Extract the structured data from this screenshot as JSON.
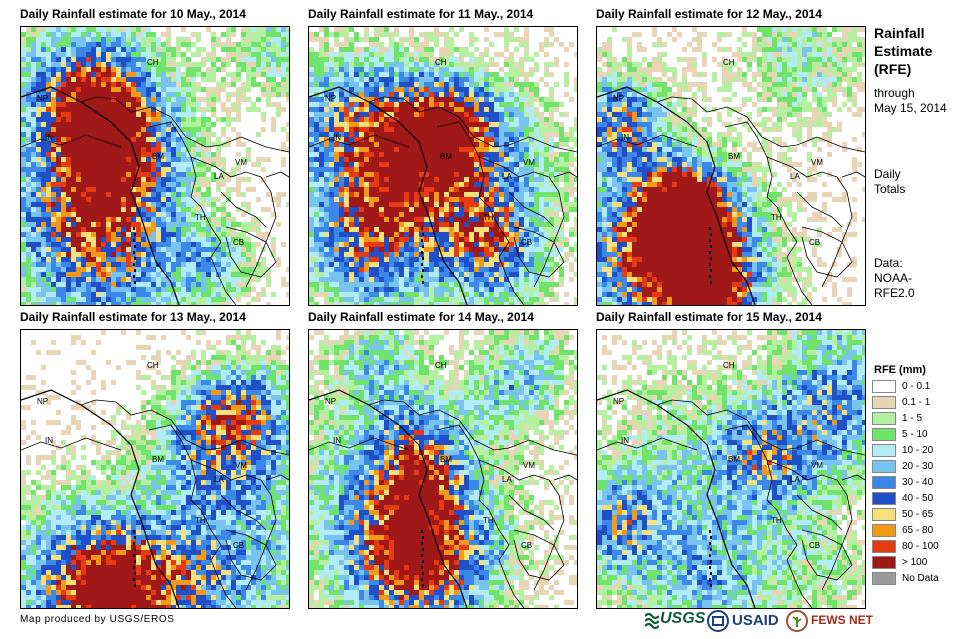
{
  "panels": [
    {
      "title": "Daily Rainfall estimate for 10 May., 2014",
      "seed": 11,
      "bias": [
        0.25,
        0.65
      ],
      "intensity": 0.55
    },
    {
      "title": "Daily Rainfall estimate for 11 May., 2014",
      "seed": 23,
      "bias": [
        0.55,
        0.75
      ],
      "intensity": 0.6
    },
    {
      "title": "Daily Rainfall estimate for 12 May., 2014",
      "seed": 37,
      "bias": [
        0.35,
        0.85
      ],
      "intensity": 0.85
    },
    {
      "title": "Daily Rainfall estimate for 13 May., 2014",
      "seed": 41,
      "bias": [
        0.25,
        0.85
      ],
      "intensity": 0.8
    },
    {
      "title": "Daily Rainfall estimate for 14 May., 2014",
      "seed": 53,
      "bias": [
        0.45,
        0.85
      ],
      "intensity": 0.75
    },
    {
      "title": "Daily Rainfall estimate for 15 May., 2014",
      "seed": 67,
      "bias": [
        0.4,
        0.9
      ],
      "intensity": 0.75
    }
  ],
  "country_labels": [
    "CH",
    "NP",
    "IN",
    "BM",
    "LA",
    "VM",
    "TH",
    "CB"
  ],
  "sidebar": {
    "title_line1": "Rainfall",
    "title_line2": "Estimate",
    "title_line3": "(RFE)",
    "through_line1": "through",
    "through_line2": "May 15, 2014",
    "totals_line1": "Daily",
    "totals_line2": "Totals",
    "data_line1": "Data:",
    "data_line2": "NOAA-",
    "data_line3": "RFE2.0"
  },
  "legend": {
    "title": "RFE (mm)",
    "items": [
      {
        "label": "0 - 0.1",
        "color": "#ffffff"
      },
      {
        "label": "0.1 - 1",
        "color": "#e8d5b5"
      },
      {
        "label": "1 - 5",
        "color": "#b4f0a0"
      },
      {
        "label": "5 - 10",
        "color": "#6fe36a"
      },
      {
        "label": "10 - 20",
        "color": "#b2ecf7"
      },
      {
        "label": "20 - 30",
        "color": "#79c3f0"
      },
      {
        "label": "30 - 40",
        "color": "#3c88e8"
      },
      {
        "label": "40 - 50",
        "color": "#2050c8"
      },
      {
        "label": "50 - 65",
        "color": "#f6e07a"
      },
      {
        "label": "65 - 80",
        "color": "#f19a18"
      },
      {
        "label": "80 - 100",
        "color": "#e83a12"
      },
      {
        "label": "> 100",
        "color": "#a01818"
      },
      {
        "label": "No Data",
        "color": "#9a9a9a"
      }
    ]
  },
  "footer": {
    "credit": "Map produced by USGS/EROS"
  },
  "logos": {
    "usgs": "USGS",
    "usaid": "USAID",
    "fewsnet": "FEWS NET"
  }
}
